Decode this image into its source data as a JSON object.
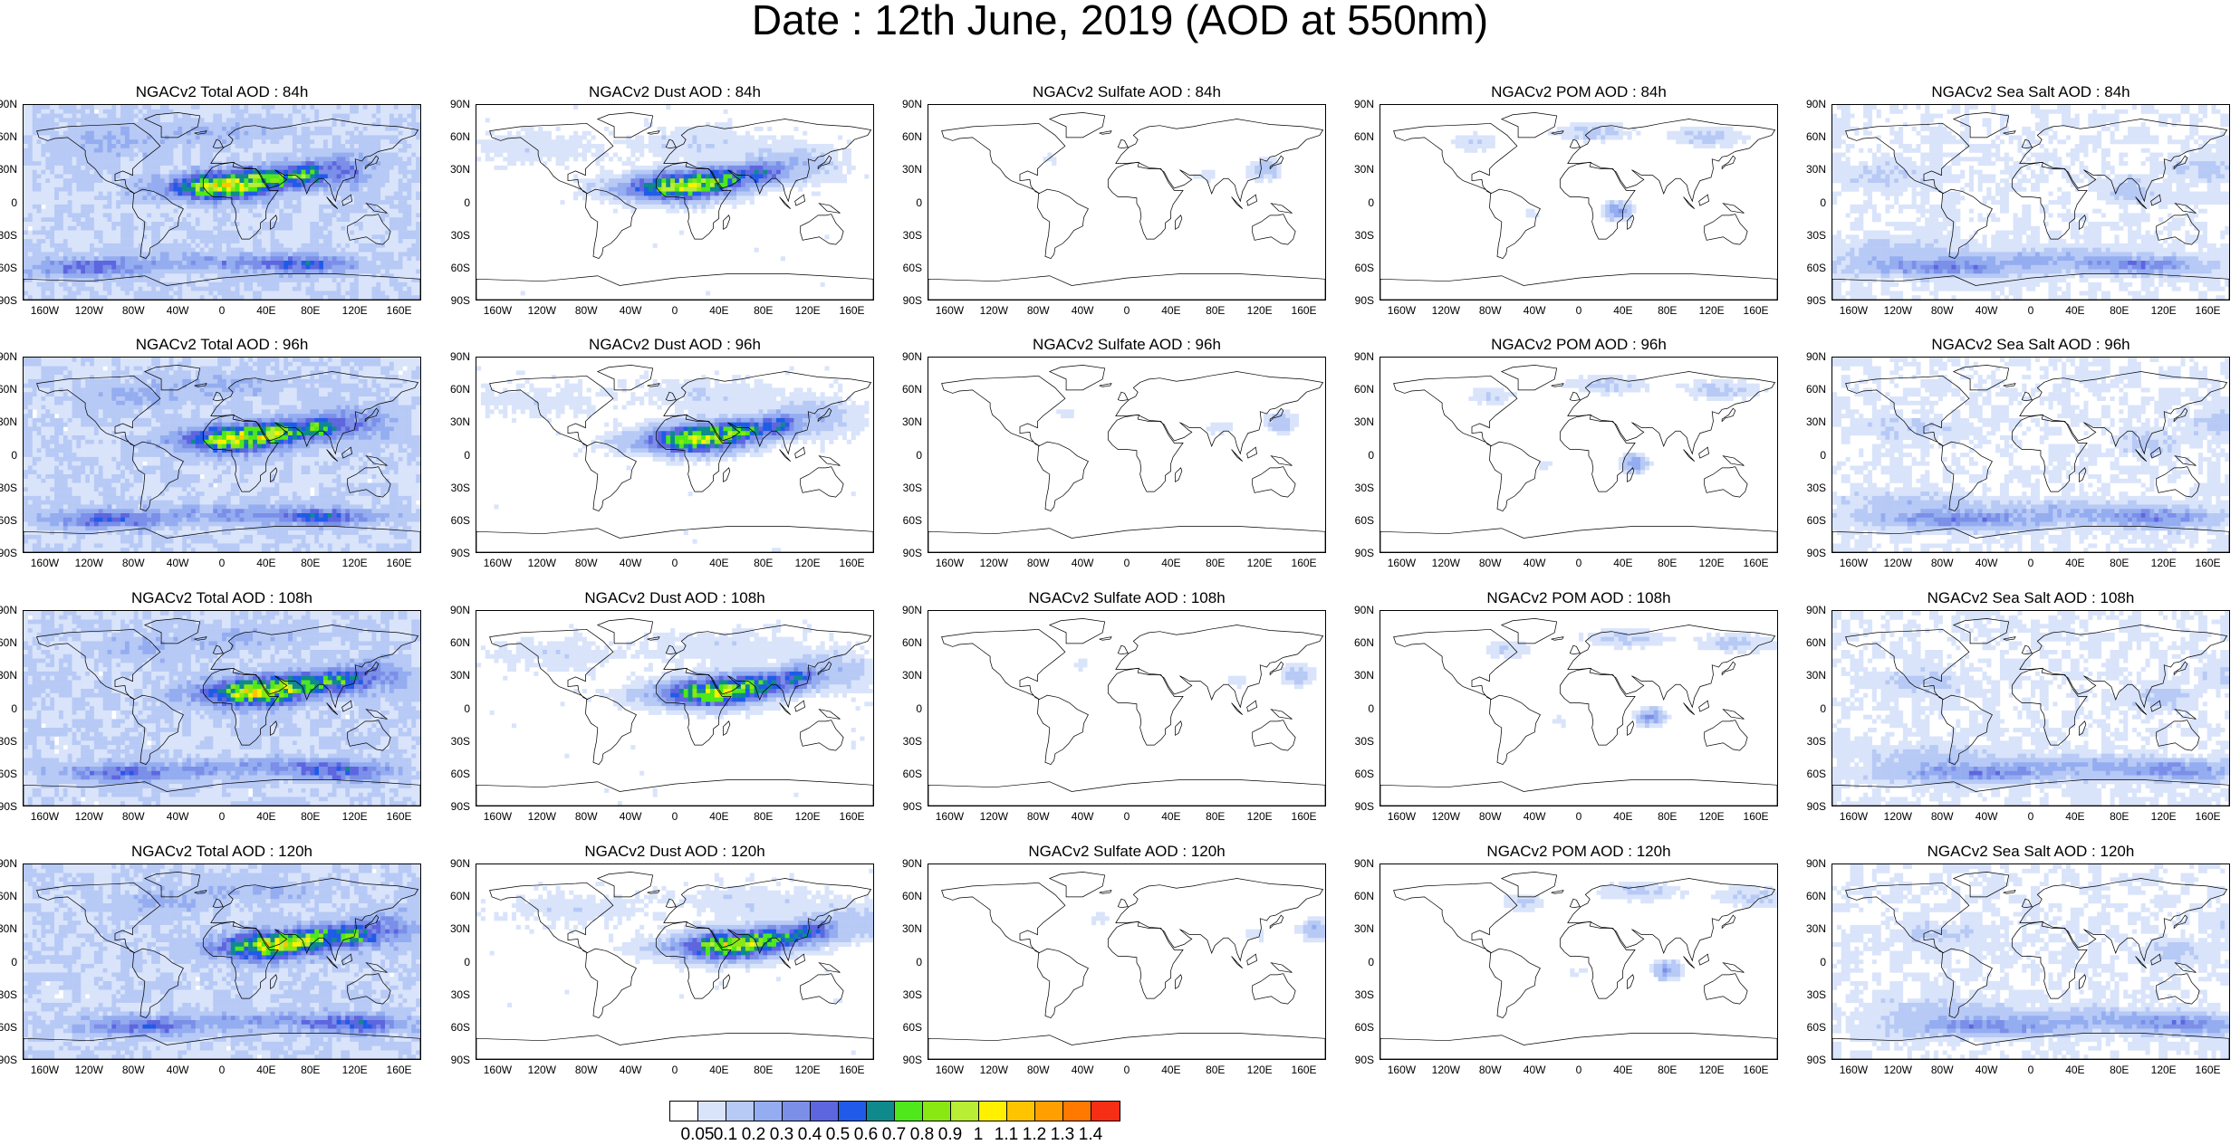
{
  "title": "Date : 12th June, 2019 (AOD at 550nm)",
  "lat_ticks": [
    "90N",
    "60N",
    "30N",
    "0",
    "30S",
    "60S",
    "90S"
  ],
  "lon_ticks": [
    "160W",
    "120W",
    "80W",
    "40W",
    "0",
    "40E",
    "80E",
    "120E",
    "160E"
  ],
  "panels": [
    [
      {
        "title": "NGACv2 Total AOD : 84h",
        "species": "total"
      },
      {
        "title": "NGACv2 Dust AOD : 84h",
        "species": "dust"
      },
      {
        "title": "NGACv2 Sulfate AOD : 84h",
        "species": "sulfate"
      },
      {
        "title": "NGACv2 POM AOD : 84h",
        "species": "pom"
      },
      {
        "title": "NGACv2 Sea Salt AOD : 84h",
        "species": "seasalt"
      }
    ],
    [
      {
        "title": "NGACv2 Total AOD : 96h",
        "species": "total"
      },
      {
        "title": "NGACv2 Dust AOD : 96h",
        "species": "dust"
      },
      {
        "title": "NGACv2 Sulfate AOD : 96h",
        "species": "sulfate"
      },
      {
        "title": "NGACv2 POM AOD : 96h",
        "species": "pom"
      },
      {
        "title": "NGACv2 Sea Salt AOD : 96h",
        "species": "seasalt"
      }
    ],
    [
      {
        "title": "NGACv2 Total AOD : 108h",
        "species": "total"
      },
      {
        "title": "NGACv2 Dust AOD : 108h",
        "species": "dust"
      },
      {
        "title": "NGACv2 Sulfate AOD : 108h",
        "species": "sulfate"
      },
      {
        "title": "NGACv2 POM AOD : 108h",
        "species": "pom"
      },
      {
        "title": "NGACv2 Sea Salt AOD : 108h",
        "species": "seasalt"
      }
    ],
    [
      {
        "title": "NGACv2 Total AOD : 120h",
        "species": "total"
      },
      {
        "title": "NGACv2 Dust AOD : 120h",
        "species": "dust"
      },
      {
        "title": "NGACv2 Sulfate AOD : 120h",
        "species": "sulfate"
      },
      {
        "title": "NGACv2 POM AOD : 120h",
        "species": "pom"
      },
      {
        "title": "NGACv2 Sea Salt  AOD : 120h",
        "species": "seasalt"
      }
    ]
  ],
  "colorbar": {
    "labels": [
      "0.05",
      "0.1",
      "0.2",
      "0.3",
      "0.4",
      "0.5",
      "0.6",
      "0.7",
      "0.8",
      "0.9",
      "1",
      "1.1",
      "1.2",
      "1.3",
      "1.4"
    ],
    "colors": [
      "#ffffff",
      "#d9e4fb",
      "#b7c9f5",
      "#94adf0",
      "#7b8fe8",
      "#5d66df",
      "#1f5be8",
      "#0e8a8c",
      "#4ee81b",
      "#8ae812",
      "#b8ee33",
      "#fff000",
      "#ffc400",
      "#ffa000",
      "#ff7800",
      "#f52e15"
    ]
  }
}
